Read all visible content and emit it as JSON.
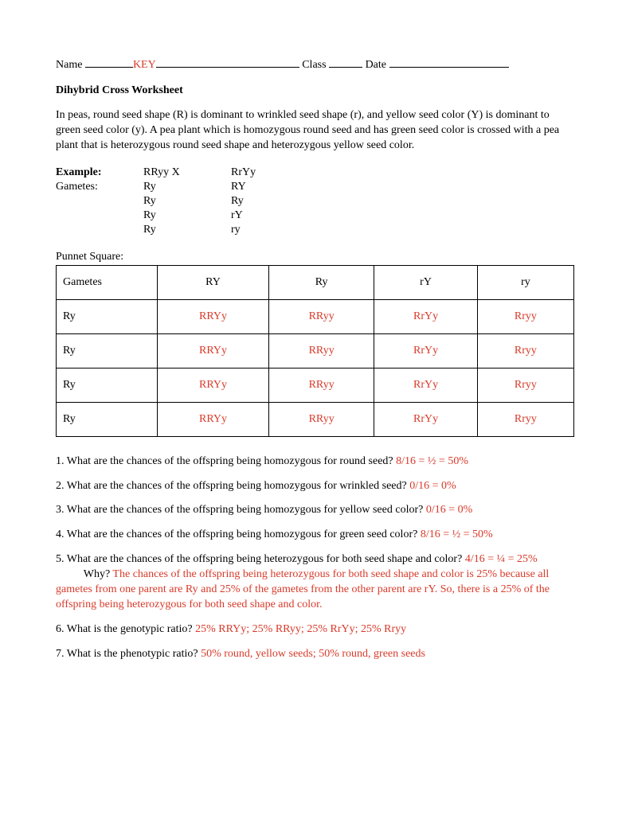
{
  "header": {
    "name_label": "Name",
    "key_text": "KEY",
    "class_label": "Class",
    "date_label": "Date"
  },
  "title": "Dihybrid Cross Worksheet",
  "intro": "In peas, round seed shape (R) is dominant to wrinkled seed shape (r), and yellow seed color (Y) is dominant to green seed color (y). A pea plant which is homozygous round seed and has green seed color is crossed with a pea plant that is heterozygous round seed shape and heterozygous yellow seed color.",
  "example": {
    "label_example": "Example:",
    "label_gametes": "Gametes:",
    "parent1_cross": "RRyy  X",
    "parent2": "RrYy",
    "p1_gametes": [
      "Ry",
      "Ry",
      "Ry",
      "Ry"
    ],
    "p2_gametes": [
      "RY",
      "Ry",
      "rY",
      "ry"
    ]
  },
  "punnet": {
    "label": "Punnet Square:",
    "header_row": [
      "Gametes",
      "RY",
      "Ry",
      "rY",
      "ry"
    ],
    "rows": [
      {
        "gamete": "Ry",
        "cells": [
          "RRYy",
          "RRyy",
          "RrYy",
          "Rryy"
        ]
      },
      {
        "gamete": "Ry",
        "cells": [
          "RRYy",
          "RRyy",
          "RrYy",
          "Rryy"
        ]
      },
      {
        "gamete": "Ry",
        "cells": [
          "RRYy",
          "RRyy",
          "RrYy",
          "Rryy"
        ]
      },
      {
        "gamete": "Ry",
        "cells": [
          "RRYy",
          "RRyy",
          "RrYy",
          "Rryy"
        ]
      }
    ]
  },
  "questions": {
    "q1": {
      "text": "1. What are the chances of the offspring being homozygous for round seed? ",
      "ans": "8/16 = ½ = 50%"
    },
    "q2": {
      "text": "2. What are the chances of the offspring being homozygous for wrinkled seed? ",
      "ans": "0/16 = 0%"
    },
    "q3": {
      "text": "3. What are the chances of the offspring being homozygous for yellow seed color? ",
      "ans": "0/16 = 0%"
    },
    "q4": {
      "text": "4. What are the chances of the offspring being homozygous for green seed color? ",
      "ans": "8/16 = ½ = 50%"
    },
    "q5": {
      "text_a": "5. What are the chances of the offspring being heterozygous for both seed shape and color? ",
      "ans_a": "4/16 = ¼ = 25%",
      "why_label": "          Why? ",
      "ans_b": "The chances of the offspring being heterozygous for both seed shape and color is 25% because all gametes from one parent are Ry and 25% of the gametes from the other parent are rY.  So, there is a 25% of the offspring being heterozygous for both seed shape and color."
    },
    "q6": {
      "text": "6. What is the genotypic ratio? ",
      "ans": "25% RRYy; 25% RRyy; 25% RrYy; 25% Rryy"
    },
    "q7": {
      "text": "7. What is the phenotypic ratio? ",
      "ans": "50% round, yellow seeds; 50% round, green seeds"
    }
  },
  "colors": {
    "answer": "#d83a2a",
    "text": "#000000",
    "background": "#ffffff"
  }
}
